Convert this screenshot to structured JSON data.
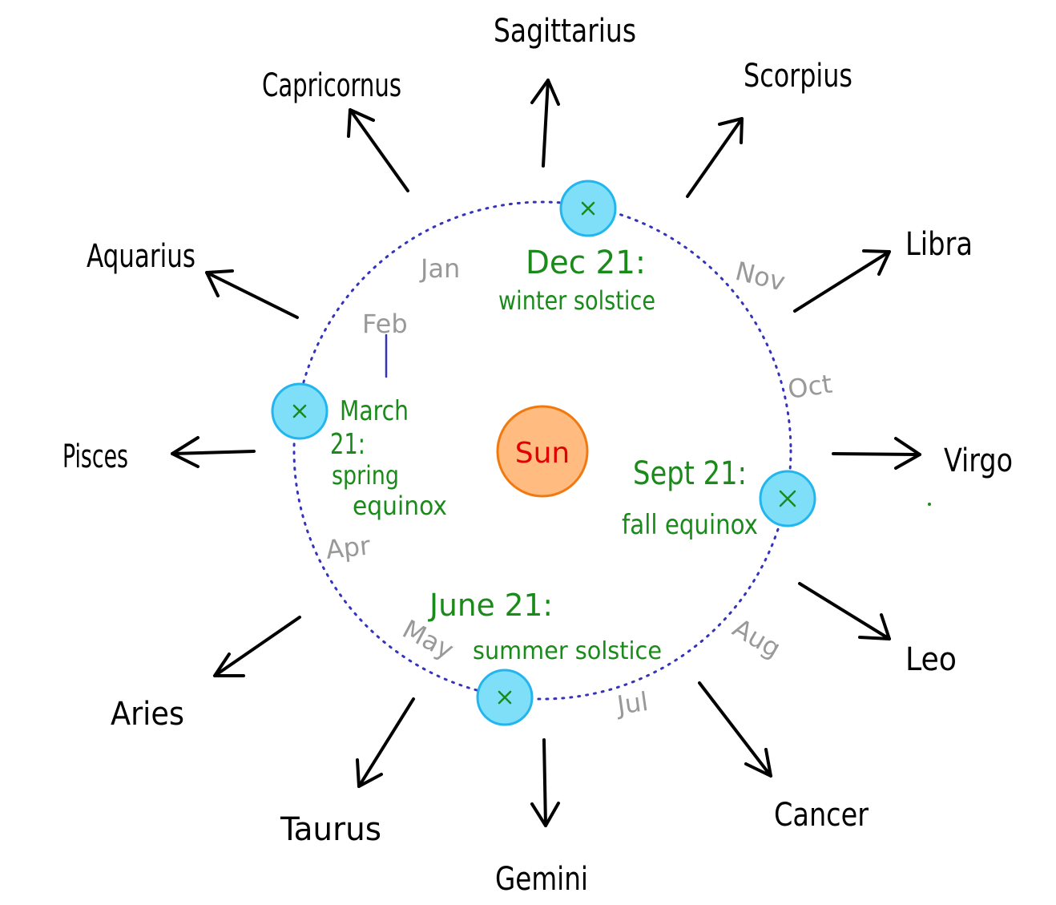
{
  "center_label": "Sun",
  "constellations": [
    {
      "key": "sagittarius",
      "label": "Sagittarius"
    },
    {
      "key": "scorpius",
      "label": "Scorpius"
    },
    {
      "key": "libra",
      "label": "Libra"
    },
    {
      "key": "virgo",
      "label": "Virgo"
    },
    {
      "key": "leo",
      "label": "Leo"
    },
    {
      "key": "cancer",
      "label": "Cancer"
    },
    {
      "key": "gemini",
      "label": "Gemini"
    },
    {
      "key": "taurus",
      "label": "Taurus"
    },
    {
      "key": "aries",
      "label": "Aries"
    },
    {
      "key": "pisces",
      "label": "Pisces"
    },
    {
      "key": "aquarius",
      "label": "Aquarius"
    },
    {
      "key": "capricornus",
      "label": "Capricornus"
    }
  ],
  "months": [
    "Jan",
    "Feb",
    "Apr",
    "May",
    "Jul",
    "Aug",
    "Oct",
    "Nov"
  ],
  "events": {
    "winter": {
      "date": "Dec 21:",
      "name": "winter solstice"
    },
    "spring": {
      "date_line1": "March",
      "date_line2": "21:",
      "name_line1": "spring",
      "name_line2": "equinox"
    },
    "summer": {
      "date": "June 21:",
      "name": "summer solstice"
    },
    "fall": {
      "date": "Sept 21:",
      "name": "fall equinox"
    }
  },
  "colors": {
    "orbit": "#3333bb",
    "earth_fill": "#80dff8",
    "earth_stroke": "#22b5ee",
    "sun_fill": "#ffbb80",
    "sun_stroke": "#f07a10",
    "sun_text": "#e00000",
    "event_text": "#1a8a1a",
    "month_text": "#999999",
    "arrow": "#000000"
  }
}
